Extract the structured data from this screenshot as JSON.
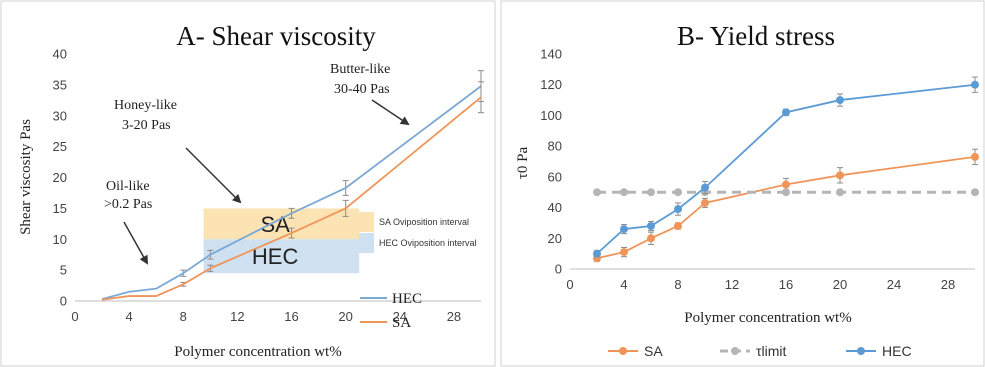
{
  "chart_data": [
    {
      "type": "line",
      "title": "A- Shear viscosity",
      "xlabel": "Polymer concentration wt%",
      "ylabel": "Shear viscosity Pas",
      "x_ticks": [
        0,
        4,
        8,
        12,
        16,
        20,
        24,
        28
      ],
      "y_ticks": [
        0,
        5,
        10,
        15,
        20,
        25,
        30,
        35,
        40
      ],
      "xlim": [
        0,
        30
      ],
      "ylim": [
        0,
        40
      ],
      "grid": "none",
      "legend": "bottom-right",
      "series": [
        {
          "name": "HEC",
          "color": "#7aa9d6",
          "x": [
            2,
            4,
            6,
            8,
            10,
            16,
            20,
            30
          ],
          "y": [
            0.3,
            1.5,
            2.0,
            4.5,
            7.5,
            14.2,
            18.3,
            34.8
          ],
          "err": [
            0,
            0,
            0,
            0.5,
            0.7,
            0.8,
            1.2,
            2.5
          ]
        },
        {
          "name": "SA",
          "color": "#f0955a",
          "x": [
            2,
            4,
            6,
            8,
            10,
            16,
            20,
            30
          ],
          "y": [
            0.2,
            0.8,
            0.8,
            2.7,
            5.3,
            11.0,
            15.0,
            33.0
          ],
          "err": [
            0,
            0,
            0,
            0.3,
            0.5,
            0.8,
            1.3,
            2.5
          ]
        }
      ],
      "annotations": [
        {
          "lines": [
            "Butter-like",
            "30-40 Pas"
          ]
        },
        {
          "lines": [
            "Honey-like",
            "3-20 Pas"
          ]
        },
        {
          "lines": [
            "Oil-like",
            ">0.2 Pas"
          ]
        }
      ],
      "bands": [
        {
          "label": "SA",
          "legend": "SA Oviposition interval",
          "color": "#fbe3b4",
          "x": [
            9.5,
            21
          ],
          "y": [
            10,
            15
          ]
        },
        {
          "label": "HEC",
          "legend": "HEC Oviposition interval",
          "color": "#cfe0f1",
          "x": [
            9.5,
            21
          ],
          "y": [
            4.5,
            10
          ]
        }
      ]
    },
    {
      "type": "line",
      "title": "B- Yield stress",
      "xlabel": "Polymer concentration wt%",
      "ylabel": "τ0 Pa",
      "x_ticks": [
        0,
        4,
        8,
        12,
        16,
        20,
        24,
        28
      ],
      "y_ticks": [
        0,
        20,
        40,
        60,
        80,
        100,
        120,
        140
      ],
      "xlim": [
        0,
        30
      ],
      "ylim": [
        0,
        140
      ],
      "grid": "none",
      "legend": "bottom",
      "series": [
        {
          "name": "SA",
          "color": "#f0955a",
          "style": "solid",
          "x": [
            2,
            4,
            6,
            8,
            10,
            16,
            20,
            30
          ],
          "y": [
            7,
            11,
            20,
            28,
            43,
            55,
            61,
            73
          ],
          "err": [
            2,
            3,
            4,
            2,
            3,
            4,
            5,
            5
          ]
        },
        {
          "name": "τlimit",
          "color": "#b5b5b5",
          "style": "dashed",
          "x": [
            2,
            4,
            6,
            8,
            10,
            16,
            20,
            30
          ],
          "y": [
            50,
            50,
            50,
            50,
            50,
            50,
            50,
            50
          ],
          "err": [
            0,
            0,
            0,
            0,
            0,
            0,
            0,
            0
          ]
        },
        {
          "name": "HEC",
          "color": "#5b9bd5",
          "style": "solid",
          "x": [
            2,
            4,
            6,
            8,
            10,
            16,
            20,
            30
          ],
          "y": [
            10,
            26,
            28,
            39,
            53,
            102,
            110,
            120
          ],
          "err": [
            2,
            3,
            3,
            4,
            4,
            2,
            4,
            5
          ]
        }
      ]
    }
  ]
}
